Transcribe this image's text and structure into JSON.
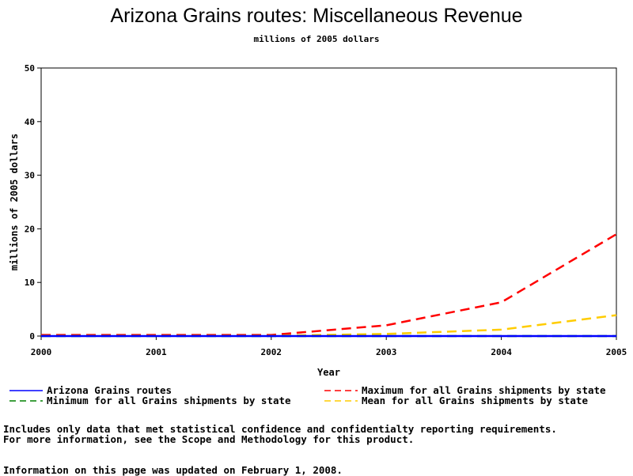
{
  "chart_data": {
    "type": "line",
    "title": "Arizona Grains routes: Miscellaneous Revenue",
    "subtitle": "millions of 2005 dollars",
    "xlabel": "Year",
    "ylabel": "millions of 2005 dollars",
    "xlim": [
      2000,
      2005
    ],
    "ylim": [
      0,
      50
    ],
    "x_ticks": [
      2000,
      2001,
      2002,
      2003,
      2004,
      2005
    ],
    "y_ticks": [
      0,
      10,
      20,
      30,
      40,
      50
    ],
    "grid": false,
    "legend_position": "bottom",
    "x": [
      2000,
      2001,
      2002,
      2003,
      2004,
      2005
    ],
    "series": [
      {
        "name": "Arizona Grains routes",
        "color": "#0000ff",
        "dash": "solid",
        "values": [
          0,
          0,
          0,
          0,
          0,
          0
        ]
      },
      {
        "name": "Maximum for all Grains shipments by state",
        "color": "#ff0000",
        "dash": "dashed",
        "values": [
          0.2,
          0.2,
          0.2,
          2.0,
          6.3,
          19.0
        ]
      },
      {
        "name": "Minimum for all Grains shipments by state",
        "color": "#008000",
        "dash": "dashed",
        "values": [
          0,
          0,
          0,
          0,
          0,
          0
        ]
      },
      {
        "name": "Mean for all Grains shipments by state",
        "color": "#ffcc00",
        "dash": "dashed",
        "values": [
          0.05,
          0.05,
          0.05,
          0.4,
          1.2,
          3.9
        ]
      }
    ]
  },
  "notes": {
    "line1": "Includes only data that met statistical confidence and confidentialty reporting requirements.",
    "line2": "For more information, see the Scope and Methodology for this product.",
    "line3": "Information on this page was updated on February 1, 2008."
  }
}
